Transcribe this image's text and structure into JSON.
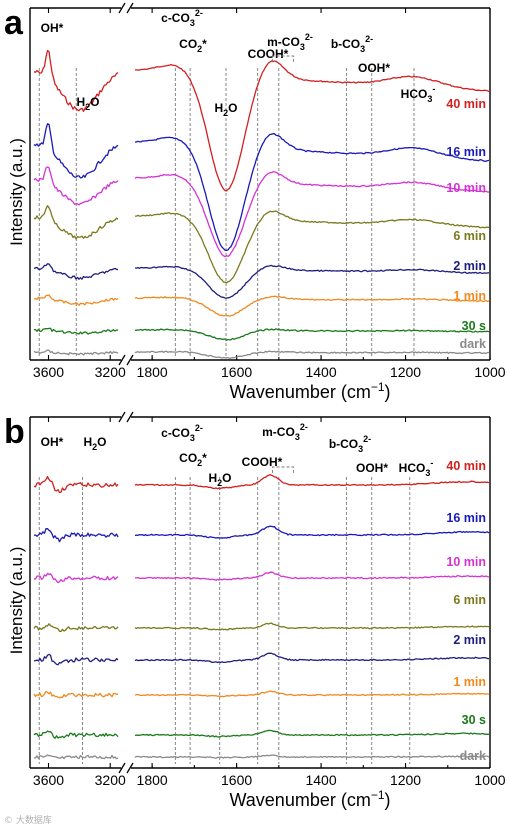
{
  "watermark": "© 大数据库",
  "chart_data": [
    {
      "type": "line",
      "panel_label": "a",
      "xlabel": "Wavenumber (cm",
      "xlabel_sup": "−1",
      "xlabel_end": ")",
      "ylabel": "Intensity (a.u.)",
      "x_left_range": [
        3720,
        3130
      ],
      "x_right_range": [
        1850,
        1000
      ],
      "x_left_ticks": [
        "3600",
        "3200"
      ],
      "x_right_ticks": [
        "1800",
        "1600",
        "1400",
        "1200",
        "1000"
      ],
      "annotations": [
        {
          "id": "oh",
          "text": "OH*",
          "x": 3660,
          "region": "left"
        },
        {
          "id": "h2o-l",
          "text": "H2O",
          "x": 3420,
          "region": "left"
        },
        {
          "id": "c-co3",
          "text": "c-CO32-",
          "x": 1745,
          "region": "right"
        },
        {
          "id": "co2",
          "text": "CO2*",
          "x": 1710,
          "region": "right"
        },
        {
          "id": "h2o-r",
          "text": "H2O",
          "x": 1625,
          "region": "right"
        },
        {
          "id": "cooh",
          "text": "COOH*",
          "x": 1550,
          "region": "right"
        },
        {
          "id": "m-co3",
          "text": "m-CO32-",
          "x": 1500,
          "region": "right"
        },
        {
          "id": "b-co3",
          "text": "b-CO32-",
          "x": 1340,
          "region": "right"
        },
        {
          "id": "ooh",
          "text": "OOH*",
          "x": 1280,
          "region": "right"
        },
        {
          "id": "hco3",
          "text": "HCO3-",
          "x": 1180,
          "region": "right"
        }
      ],
      "series": [
        {
          "name": "40 min",
          "color": "#d22020"
        },
        {
          "name": "16 min",
          "color": "#1a1ab8"
        },
        {
          "name": "10 min",
          "color": "#d633d6"
        },
        {
          "name": "6 min",
          "color": "#7a7a1e"
        },
        {
          "name": "2 min",
          "color": "#1e1e80"
        },
        {
          "name": "1 min",
          "color": "#f08a1e"
        },
        {
          "name": "30 s",
          "color": "#1a7a1a"
        },
        {
          "name": "dark",
          "color": "#8a8a8a"
        }
      ]
    },
    {
      "type": "line",
      "panel_label": "b",
      "xlabel": "Wavenumber (cm",
      "xlabel_sup": "−1",
      "xlabel_end": ")",
      "ylabel": "Intensity (a.u.)",
      "x_left_range": [
        3720,
        3130
      ],
      "x_right_range": [
        1850,
        1000
      ],
      "x_left_ticks": [
        "3600",
        "3200"
      ],
      "x_right_ticks": [
        "1800",
        "1600",
        "1400",
        "1200",
        "1000"
      ],
      "annotations": [
        {
          "id": "oh",
          "text": "OH*",
          "x": 3660,
          "region": "left"
        },
        {
          "id": "h2o-l",
          "text": "H2O",
          "x": 3380,
          "region": "left"
        },
        {
          "id": "c-co3",
          "text": "c-CO32-",
          "x": 1745,
          "region": "right"
        },
        {
          "id": "co2",
          "text": "CO2*",
          "x": 1710,
          "region": "right"
        },
        {
          "id": "h2o-r",
          "text": "H2O",
          "x": 1640,
          "region": "right"
        },
        {
          "id": "cooh",
          "text": "COOH*",
          "x": 1550,
          "region": "right"
        },
        {
          "id": "m-co3",
          "text": "m-CO32-",
          "x": 1500,
          "region": "right"
        },
        {
          "id": "b-co3",
          "text": "b-CO32-",
          "x": 1340,
          "region": "right"
        },
        {
          "id": "ooh",
          "text": "OOH*",
          "x": 1280,
          "region": "right"
        },
        {
          "id": "hco3",
          "text": "HCO3-",
          "x": 1190,
          "region": "right"
        }
      ],
      "series": [
        {
          "name": "40 min",
          "color": "#d22020"
        },
        {
          "name": "16 min",
          "color": "#1a1ab8"
        },
        {
          "name": "10 min",
          "color": "#d633d6"
        },
        {
          "name": "6 min",
          "color": "#7a7a1e"
        },
        {
          "name": "2 min",
          "color": "#1e1e80"
        },
        {
          "name": "1 min",
          "color": "#f08a1e"
        },
        {
          "name": "30 s",
          "color": "#1a7a1a"
        },
        {
          "name": "dark",
          "color": "#8a8a8a"
        }
      ]
    }
  ]
}
